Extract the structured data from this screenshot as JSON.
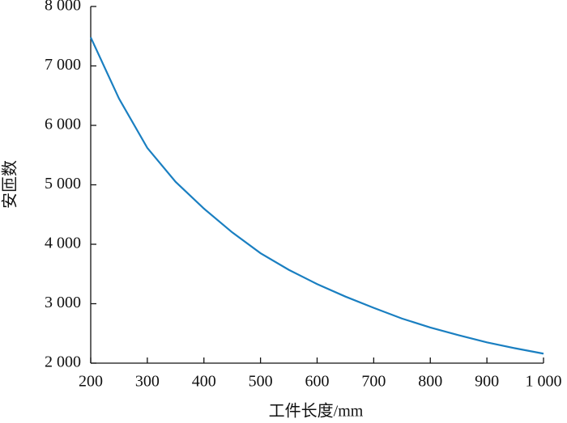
{
  "chart_data": {
    "type": "line",
    "x_label": "工件长度/mm",
    "y_label": "安匝数",
    "x": [
      200,
      250,
      300,
      350,
      400,
      450,
      500,
      550,
      600,
      650,
      700,
      750,
      800,
      850,
      900,
      950,
      1000
    ],
    "series": [
      {
        "color": "#1a7fc1",
        "values": [
          7480,
          6450,
          5620,
          5050,
          4600,
          4200,
          3850,
          3570,
          3330,
          3120,
          2930,
          2750,
          2600,
          2470,
          2350,
          2250,
          2160
        ]
      }
    ],
    "xlim": [
      200,
      1000
    ],
    "ylim": [
      2000,
      8000
    ],
    "xticks": [
      200,
      300,
      400,
      500,
      600,
      700,
      800,
      900,
      {
        "value": 1000,
        "label": "1 000"
      }
    ],
    "yticks": [
      {
        "value": 2000,
        "label": "2 000"
      },
      {
        "value": 3000,
        "label": "3 000"
      },
      {
        "value": 4000,
        "label": "4 000"
      },
      {
        "value": 5000,
        "label": "5 000"
      },
      {
        "value": 6000,
        "label": "6 000"
      },
      {
        "value": 7000,
        "label": "7 000"
      },
      {
        "value": 8000,
        "label": "8 000"
      }
    ],
    "grid": false
  }
}
